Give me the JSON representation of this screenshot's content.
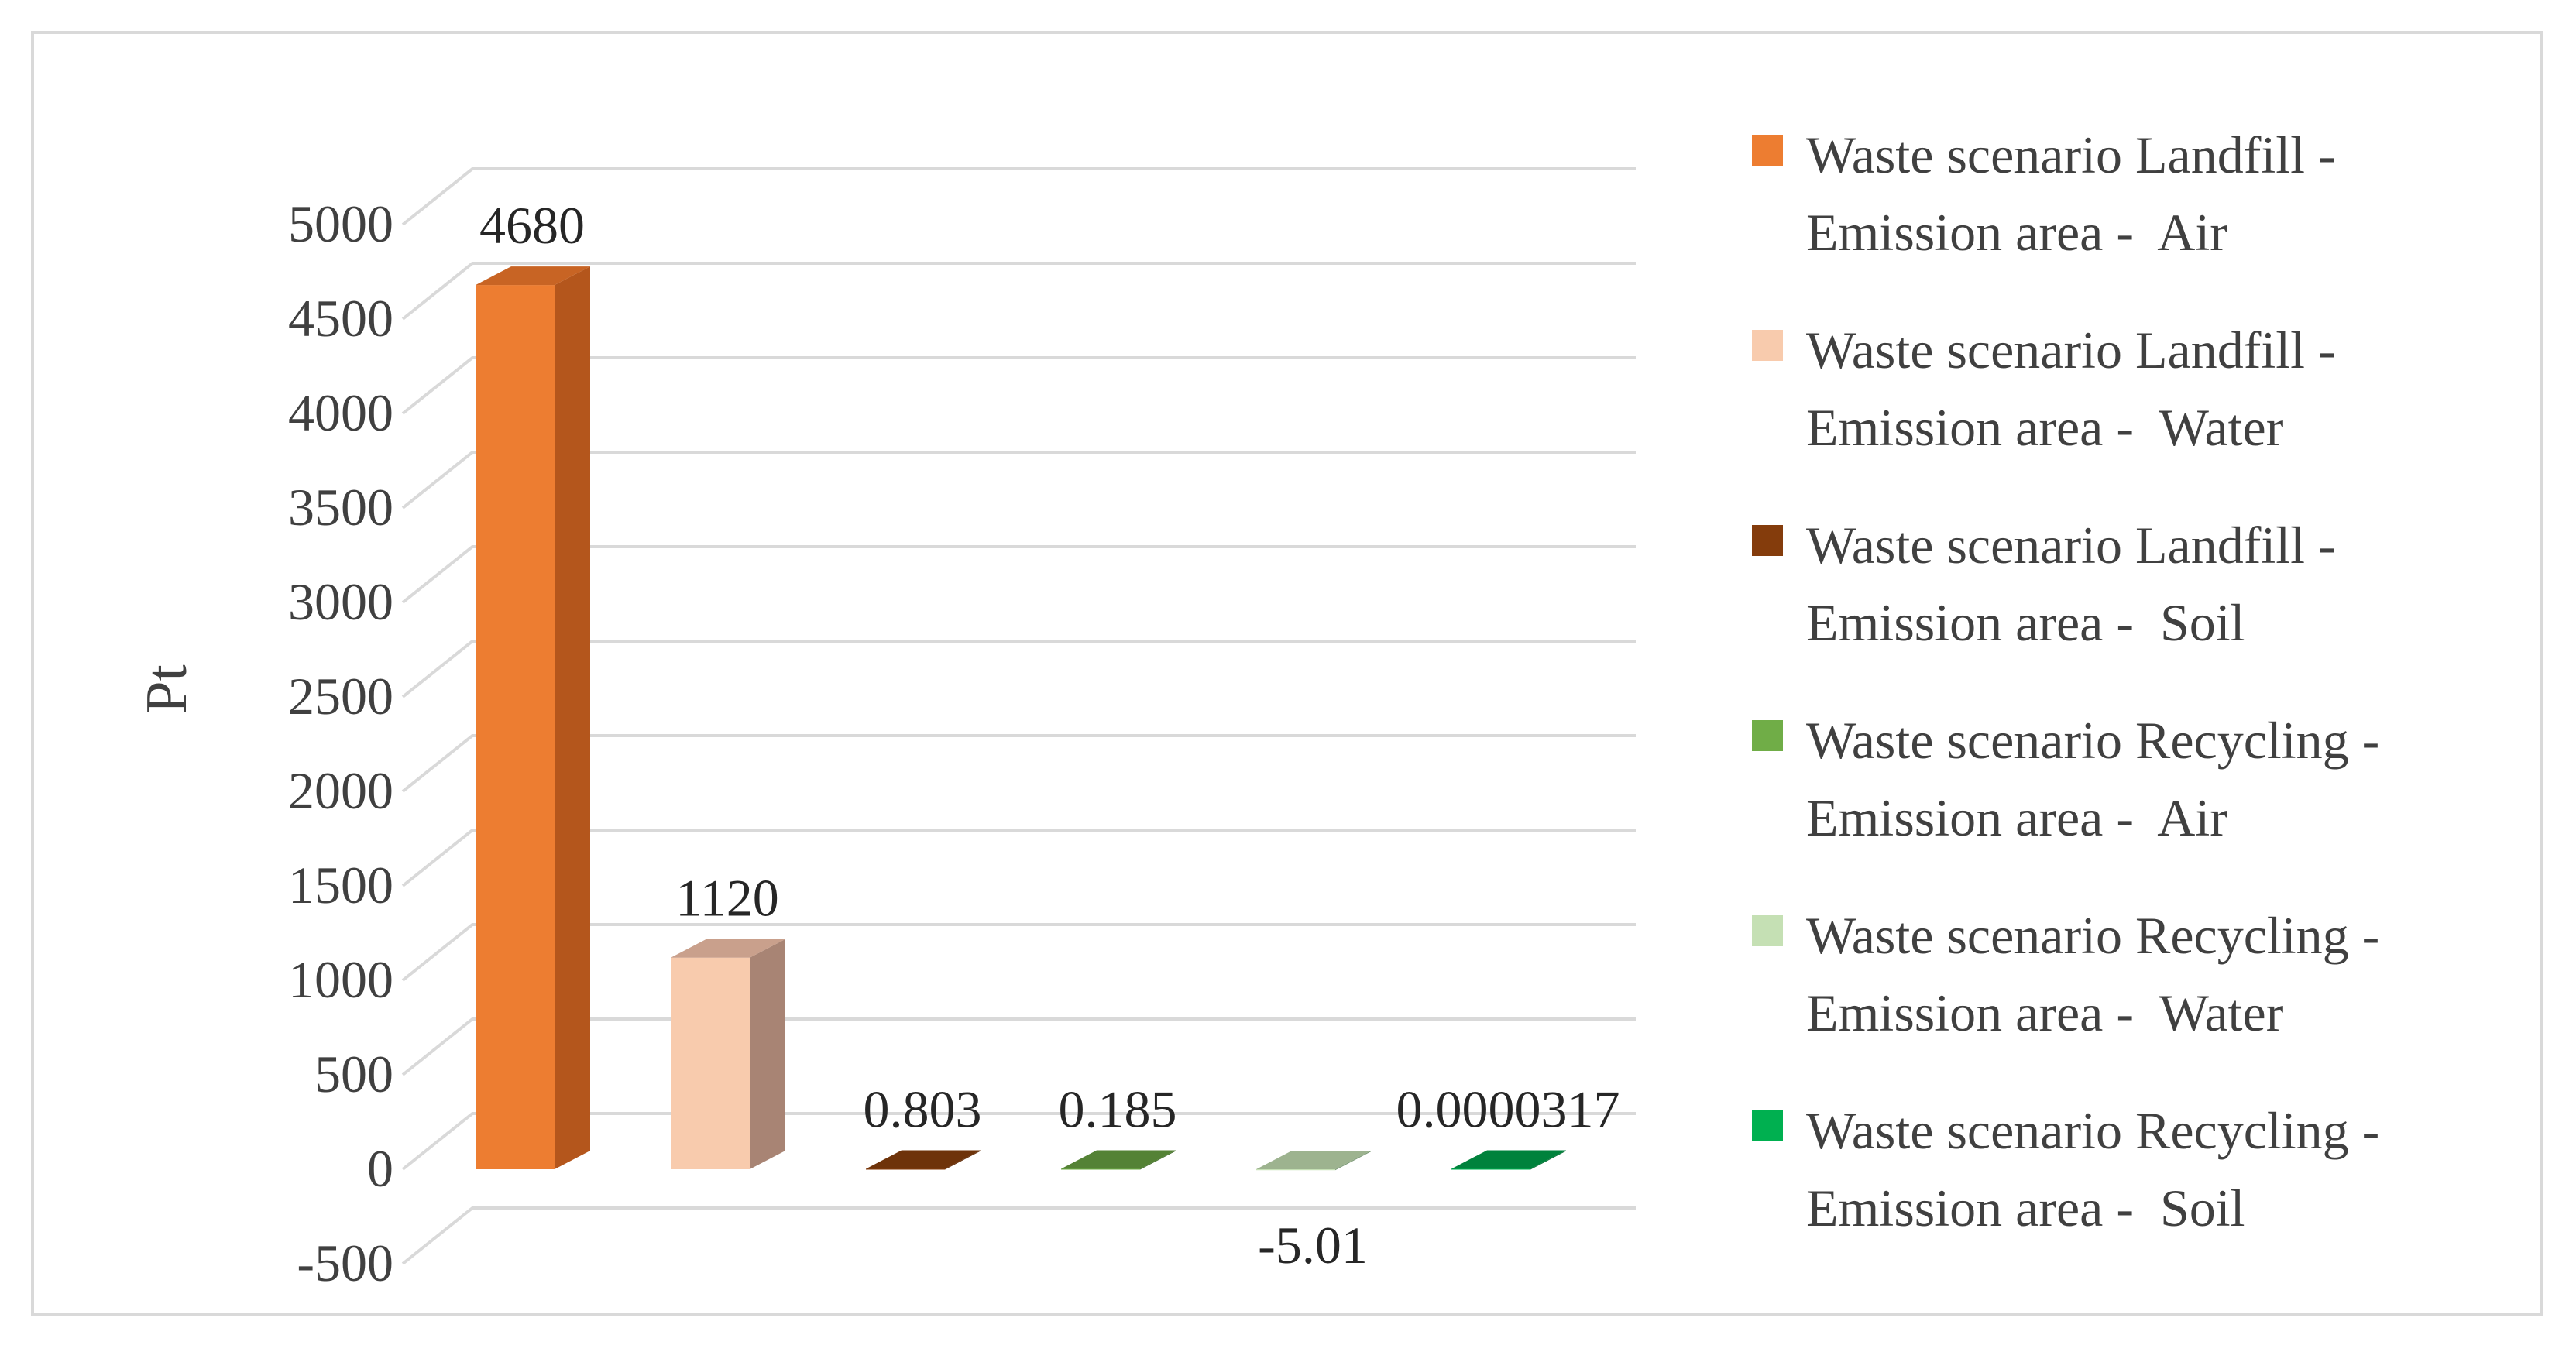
{
  "chart_data": {
    "type": "bar",
    "ylabel": "Pt",
    "ylim": [
      -500,
      5000
    ],
    "yticks": [
      5000,
      4500,
      4000,
      3500,
      3000,
      2500,
      2000,
      1500,
      1000,
      500,
      0,
      -500
    ],
    "grid": true,
    "legend_position": "right",
    "series": [
      {
        "name_line1": "Waste scenario Landfill -",
        "name_line2": "Emission area -  Air",
        "value": 4680,
        "label": "4680",
        "color": "#ED7D31",
        "side": "#B4561C",
        "top": "#C86424"
      },
      {
        "name_line1": "Waste scenario Landfill -",
        "name_line2": "Emission area -  Water",
        "value": 1120,
        "label": "1120",
        "color": "#F8CBAD",
        "side": "#A88474",
        "top": "#C9A08C"
      },
      {
        "name_line1": "Waste scenario Landfill -",
        "name_line2": "Emission area -  Soil",
        "value": 0.803,
        "label": "0.803",
        "color": "#843C0C",
        "side": "#5E2A08",
        "top": "#6E330A"
      },
      {
        "name_line1": "Waste scenario Recycling -",
        "name_line2": "Emission area -  Air",
        "value": 0.185,
        "label": "0.185",
        "color": "#70AD47",
        "side": "#3F6B28",
        "top": "#548235"
      },
      {
        "name_line1": "Waste scenario Recycling -",
        "name_line2": "Emission area -  Water",
        "value": -5.01,
        "label": "-5.01",
        "color": "#C5E0B4",
        "side": "#7C9A77",
        "top": "#9DB38F"
      },
      {
        "name_line1": "Waste scenario Recycling -",
        "name_line2": "Emission area -  Soil",
        "value": 3.17e-05,
        "label": "0.0000317",
        "color": "#00B050",
        "side": "#006B30",
        "top": "#00823C"
      }
    ]
  }
}
